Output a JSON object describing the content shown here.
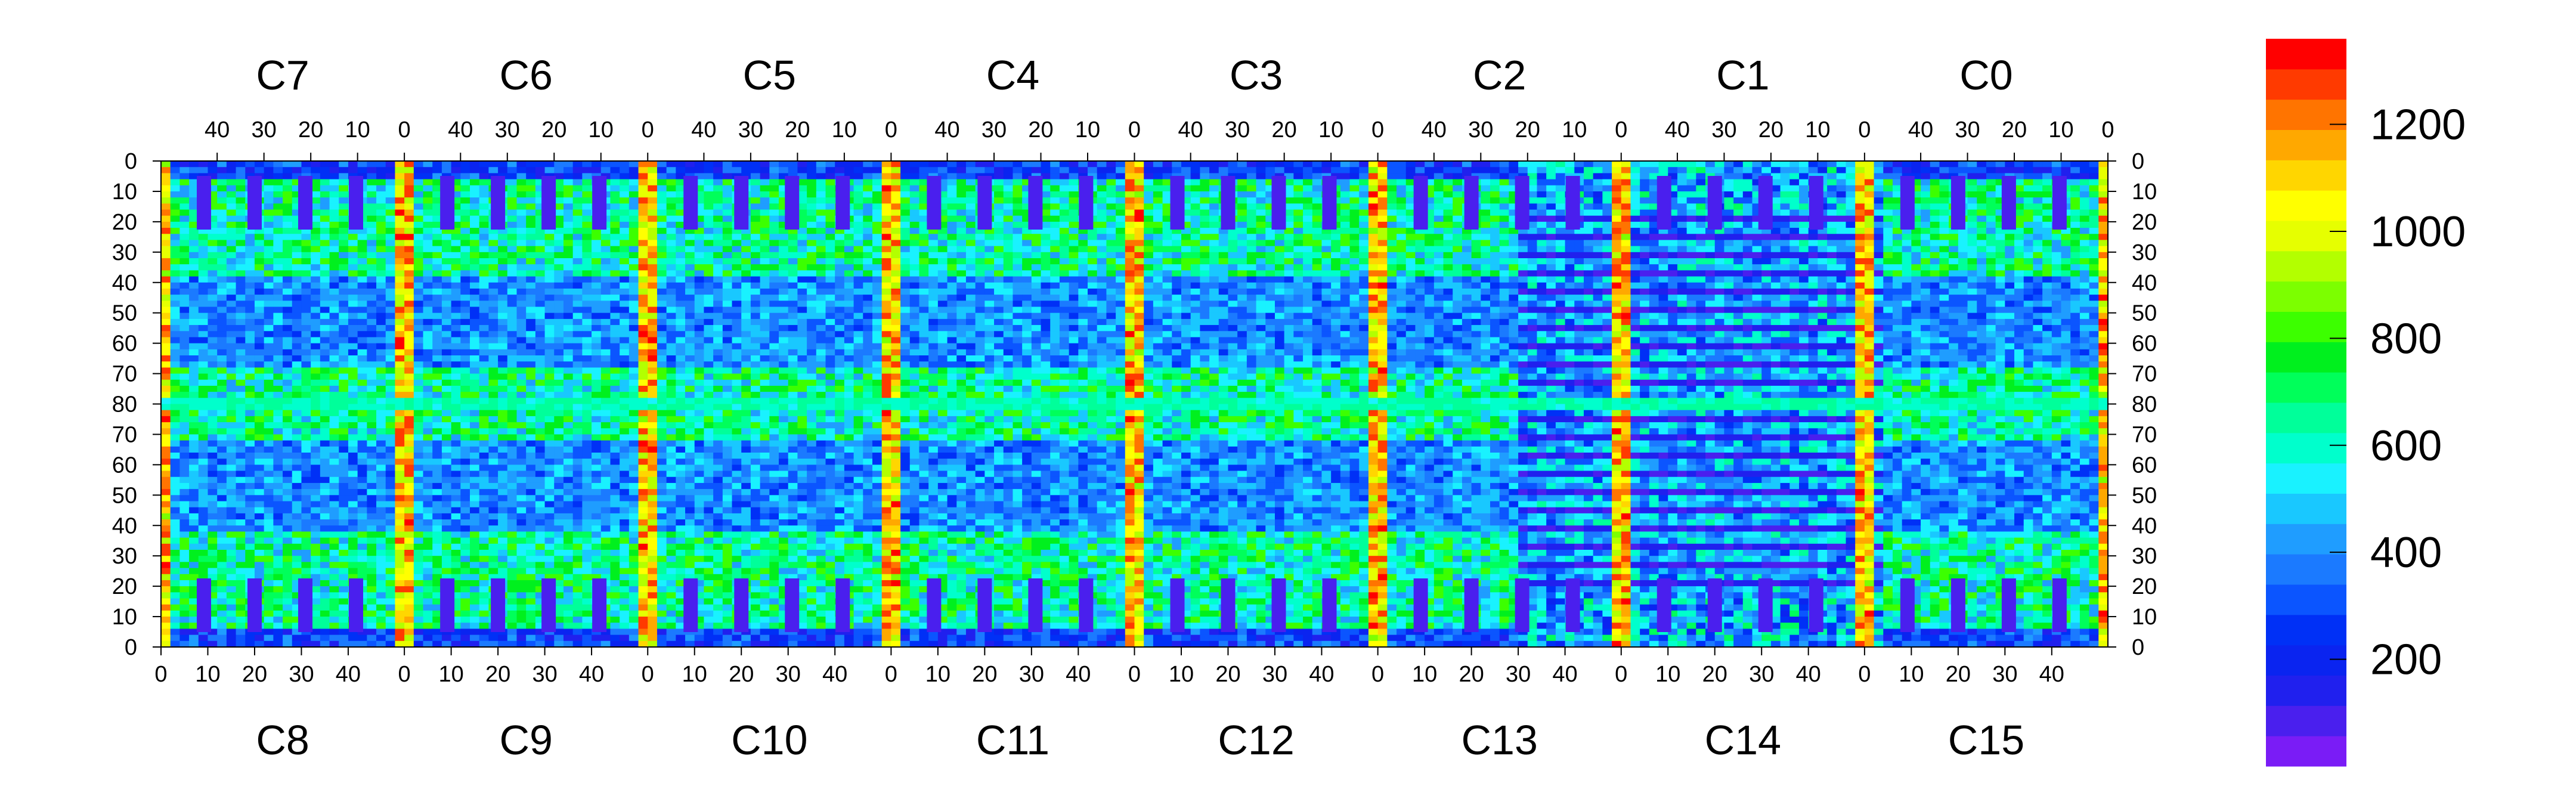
{
  "chart_data": {
    "type": "heatmap",
    "title": "",
    "xlabel": "",
    "ylabel": "",
    "top_chip_labels": [
      "C7",
      "C6",
      "C5",
      "C4",
      "C3",
      "C2",
      "C1",
      "C0"
    ],
    "bottom_chip_labels": [
      "C8",
      "C9",
      "C10",
      "C11",
      "C12",
      "C13",
      "C14",
      "C15"
    ],
    "top_x_ticks": [
      "40",
      "30",
      "20",
      "10",
      "0"
    ],
    "bottom_x_ticks": [
      "0",
      "10",
      "20",
      "30",
      "40"
    ],
    "y_ticks_upper": [
      "0",
      "10",
      "20",
      "30",
      "40",
      "50",
      "60",
      "70",
      "80"
    ],
    "y_ticks_lower": [
      "70",
      "60",
      "50",
      "40",
      "30",
      "20",
      "10",
      "0"
    ],
    "chip_columns": 52,
    "chip_rows": 80,
    "zlim": [
      0,
      1360
    ],
    "colorbar_ticks": [
      "200",
      "400",
      "600",
      "800",
      "1000",
      "1200"
    ],
    "colorbar_tick_values": [
      200,
      400,
      600,
      800,
      1000,
      1200
    ],
    "palette": [
      "#7a1cf6",
      "#4a1fee",
      "#2020ee",
      "#0a24f0",
      "#0030f6",
      "#0b55ff",
      "#1b7aff",
      "#1f9dff",
      "#19c8ff",
      "#19f2ff",
      "#00ffcc",
      "#00ff9a",
      "#00ff5a",
      "#00f01e",
      "#3cff00",
      "#7cff00",
      "#b3ff00",
      "#e6ff00",
      "#ffff00",
      "#ffd600",
      "#ffa800",
      "#ff7400",
      "#ff3a00",
      "#ff0000"
    ],
    "features": {
      "hot_column_per_chip": 1250,
      "center_row_value": 620,
      "bond_pad_blocks": "low (~60) rectangular blocks near top/bottom edges",
      "c13_c14_striping": "alternating horizontal low-value bands",
      "typical_background": [
        380,
        700
      ]
    }
  }
}
